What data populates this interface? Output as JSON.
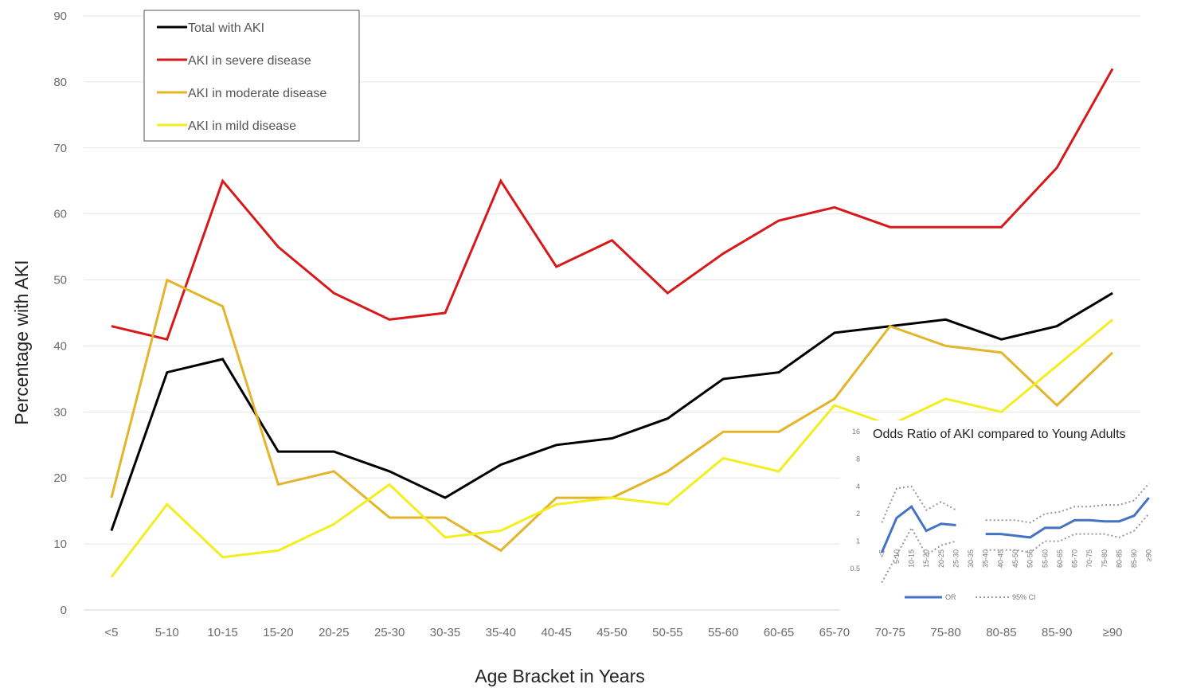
{
  "chart_data": [
    {
      "type": "line",
      "xlabel": "Age Bracket in Years",
      "ylabel": "Percentage with AKI",
      "ylim": [
        0,
        90
      ],
      "yticks": [
        0,
        10,
        20,
        30,
        40,
        50,
        60,
        70,
        80,
        90
      ],
      "grid": true,
      "legend_position": "top-left",
      "categories": [
        "<5",
        "5-10",
        "10-15",
        "15-20",
        "20-25",
        "25-30",
        "30-35",
        "35-40",
        "40-45",
        "45-50",
        "50-55",
        "55-60",
        "60-65",
        "65-70",
        "70-75",
        "75-80",
        "80-85",
        "85-90",
        "≥90"
      ],
      "series": [
        {
          "name": "Total with AKI",
          "color": "#000000",
          "values": [
            12,
            36,
            38,
            24,
            24,
            21,
            17,
            22,
            25,
            26,
            29,
            35,
            36,
            42,
            43,
            44,
            41,
            43,
            48
          ]
        },
        {
          "name": "AKI in severe disease",
          "color": "#d7191c",
          "values": [
            43,
            41,
            65,
            55,
            48,
            44,
            45,
            65,
            52,
            56,
            48,
            54,
            59,
            61,
            58,
            58,
            58,
            67,
            82
          ]
        },
        {
          "name": "AKI in moderate disease",
          "color": "#e3b52b",
          "values": [
            17,
            50,
            46,
            19,
            21,
            14,
            14,
            9,
            17,
            17,
            21,
            27,
            27,
            32,
            43,
            40,
            39,
            31,
            39
          ]
        },
        {
          "name": "AKI in mild disease",
          "color": "#f3ee1f",
          "values": [
            5,
            16,
            8,
            9,
            13,
            19,
            11,
            12,
            16,
            17,
            16,
            23,
            21,
            31,
            28,
            32,
            30,
            37,
            44
          ]
        }
      ]
    },
    {
      "type": "line",
      "title": "Odds Ratio of AKI compared to Young Adults",
      "yscale": "log2",
      "ylim": [
        0.5,
        16
      ],
      "yticks": [
        "0.5",
        "1",
        "2",
        "4",
        "8",
        "16"
      ],
      "categories": [
        "<5",
        "5-10",
        "10-15",
        "15-20",
        "20-25",
        "25-30",
        "30-35",
        "35-40",
        "40-45",
        "45-50",
        "50-55",
        "55-60",
        "60-65",
        "65-70",
        "70-75",
        "75-80",
        "80-85",
        "85-90",
        "≥90"
      ],
      "legend": [
        "OR",
        "95% CI"
      ],
      "series": [
        {
          "name": "OR",
          "color": "#4472c4",
          "values": [
            0.75,
            1.8,
            2.4,
            1.3,
            1.55,
            1.5,
            null,
            1.2,
            1.2,
            1.15,
            1.1,
            1.4,
            1.4,
            1.7,
            1.7,
            1.65,
            1.65,
            1.9,
            3.0
          ]
        },
        {
          "name": "95% CI",
          "color": "#999999",
          "values": [
            1.6,
            3.8,
            4.0,
            2.2,
            2.7,
            2.2,
            null,
            1.7,
            1.7,
            1.7,
            1.6,
            2.0,
            2.1,
            2.4,
            2.4,
            2.5,
            2.5,
            2.8,
            4.3
          ]
        },
        {
          "name": "95% CI",
          "color": "#999999",
          "values": [
            0.35,
            0.7,
            1.4,
            0.7,
            0.9,
            1.0,
            null,
            0.8,
            0.8,
            0.8,
            0.75,
            1.0,
            1.0,
            1.2,
            1.2,
            1.2,
            1.1,
            1.3,
            2.0
          ]
        }
      ]
    }
  ]
}
